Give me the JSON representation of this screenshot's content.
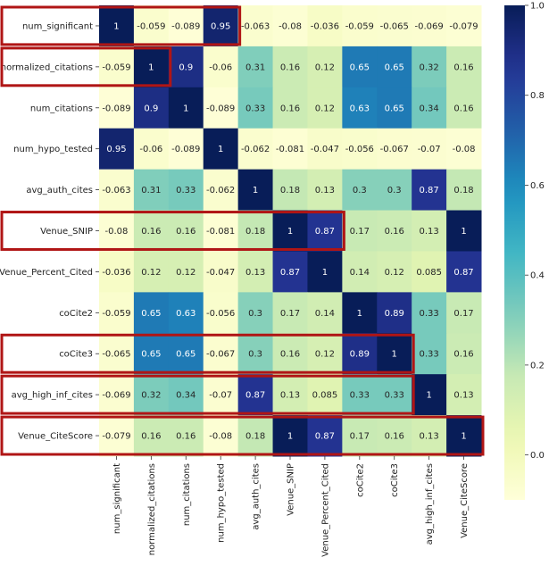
{
  "chart_data": {
    "type": "heatmap",
    "title": "",
    "xlabel": "",
    "ylabel": "",
    "labels": [
      "num_significant",
      "normalized_citations",
      "num_citations",
      "num_hypo_tested",
      "avg_auth_cites",
      "Venue_SNIP",
      "Venue_Percent_Cited",
      "coCite2",
      "coCite3",
      "avg_high_inf_cites",
      "Venue_CiteScore"
    ],
    "cell_text": [
      [
        "1",
        "-0.059",
        "-0.089",
        "0.95",
        "-0.063",
        "-0.08",
        "-0.036",
        "-0.059",
        "-0.065",
        "-0.069",
        "-0.079"
      ],
      [
        "-0.059",
        "1",
        "0.9",
        "-0.06",
        "0.31",
        "0.16",
        "0.12",
        "0.65",
        "0.65",
        "0.32",
        "0.16"
      ],
      [
        "-0.089",
        "0.9",
        "1",
        "-0.089",
        "0.33",
        "0.16",
        "0.12",
        "0.63",
        "0.65",
        "0.34",
        "0.16"
      ],
      [
        "0.95",
        "-0.06",
        "-0.089",
        "1",
        "-0.062",
        "-0.081",
        "-0.047",
        "-0.056",
        "-0.067",
        "-0.07",
        "-0.08"
      ],
      [
        "-0.063",
        "0.31",
        "0.33",
        "-0.062",
        "1",
        "0.18",
        "0.13",
        "0.3",
        "0.3",
        "0.87",
        "0.18"
      ],
      [
        "-0.08",
        "0.16",
        "0.16",
        "-0.081",
        "0.18",
        "1",
        "0.87",
        "0.17",
        "0.16",
        "0.13",
        "1"
      ],
      [
        "-0.036",
        "0.12",
        "0.12",
        "-0.047",
        "0.13",
        "0.87",
        "1",
        "0.14",
        "0.12",
        "0.085",
        "0.87"
      ],
      [
        "-0.059",
        "0.65",
        "0.63",
        "-0.056",
        "0.3",
        "0.17",
        "0.14",
        "1",
        "0.89",
        "0.33",
        "0.17"
      ],
      [
        "-0.065",
        "0.65",
        "0.65",
        "-0.067",
        "0.3",
        "0.16",
        "0.12",
        "0.89",
        "1",
        "0.33",
        "0.16"
      ],
      [
        "-0.069",
        "0.32",
        "0.34",
        "-0.07",
        "0.87",
        "0.13",
        "0.085",
        "0.33",
        "0.33",
        "1",
        "0.13"
      ],
      [
        "-0.079",
        "0.16",
        "0.16",
        "-0.08",
        "0.18",
        "1",
        "0.87",
        "0.17",
        "0.16",
        "0.13",
        "1"
      ]
    ],
    "value_range": [
      -0.1,
      1.0
    ],
    "colormap": "YlGnBu",
    "colorbar": {
      "ticks": [
        0.0,
        0.2,
        0.4,
        0.6,
        0.8,
        1.0
      ],
      "tick_labels": [
        "0.0",
        "0.2",
        "0.4",
        "0.6",
        "0.8",
        "1.0"
      ]
    },
    "highlights": [
      {
        "row": 0,
        "from_col": 0,
        "to_col": 3
      },
      {
        "row": 1,
        "from_col": 0,
        "to_col": 1
      },
      {
        "row": 5,
        "from_col": 0,
        "to_col": 6
      },
      {
        "row": 8,
        "from_col": 0,
        "to_col": 8
      },
      {
        "row": 9,
        "from_col": 0,
        "to_col": 8
      },
      {
        "row": 10,
        "from_col": 0,
        "to_col": 10
      }
    ],
    "colors": {
      "highlight": "#b01515",
      "text_dark": "#262626",
      "text_light": "#ffffff"
    }
  }
}
